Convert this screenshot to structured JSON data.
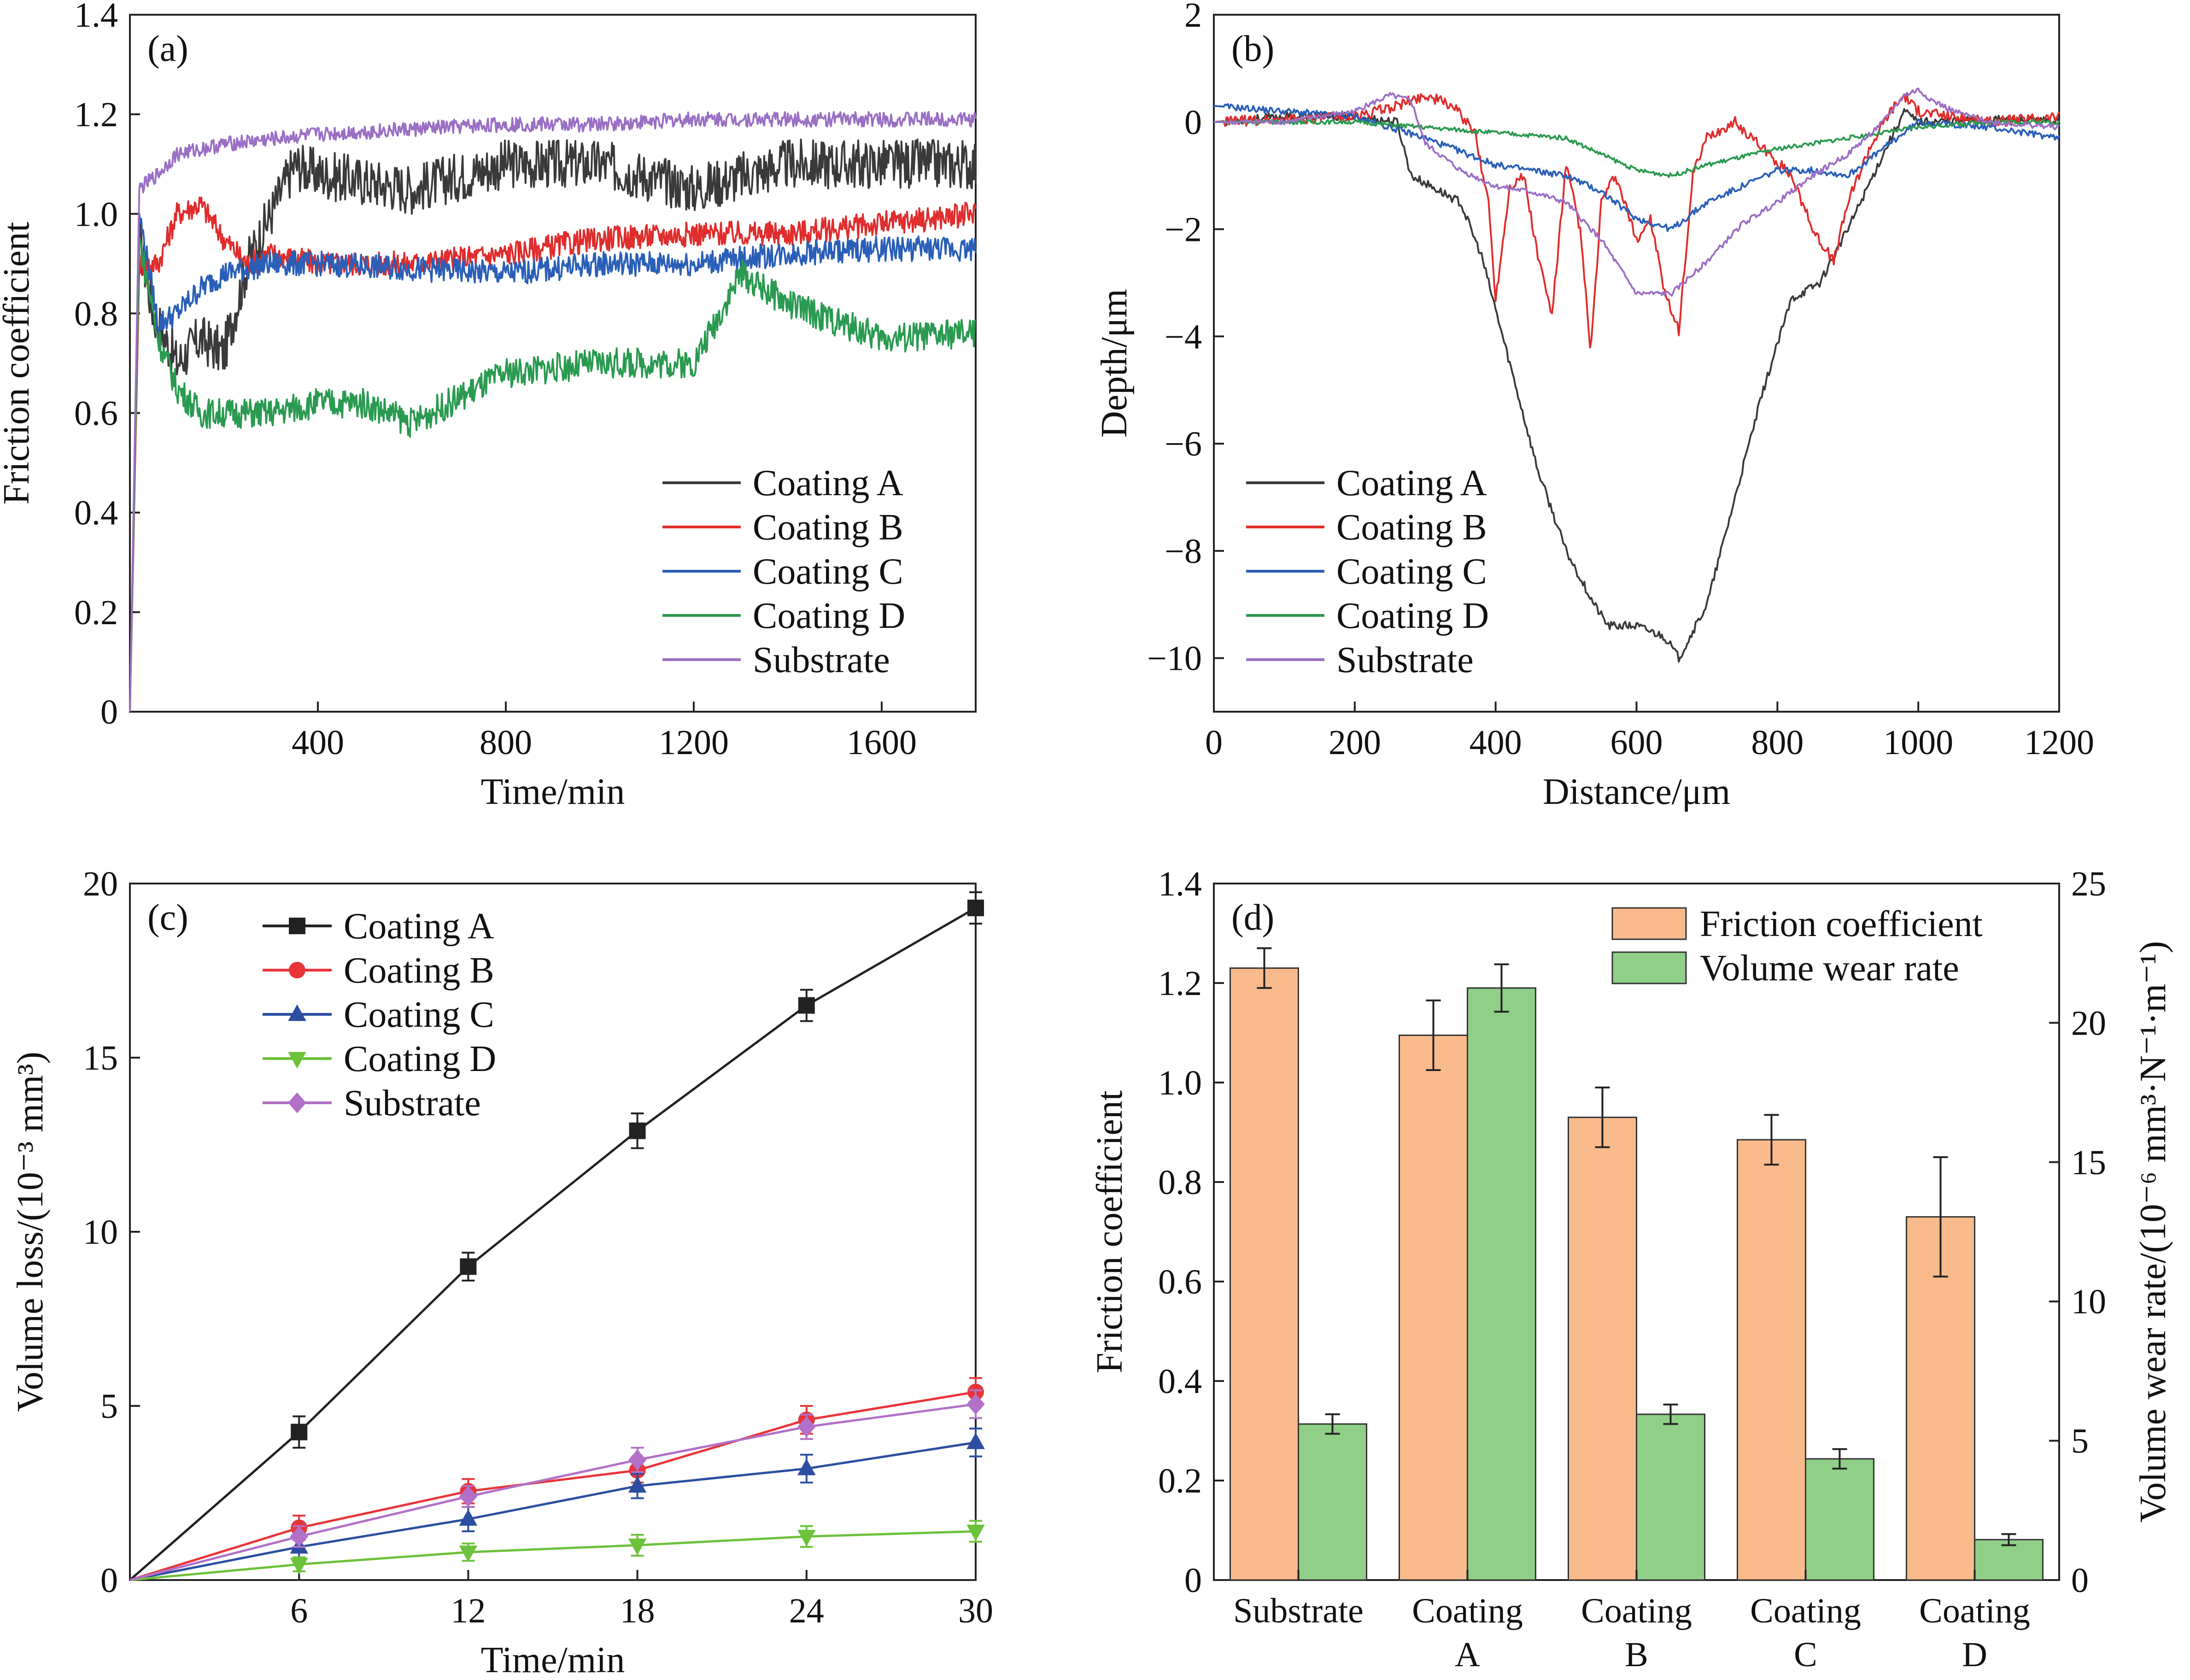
{
  "chart_data": [
    {
      "panel": "(a)",
      "type": "line",
      "xlabel": "Time/min",
      "ylabel": "Friction coefficient",
      "xlim": [
        0,
        1800
      ],
      "ylim": [
        0,
        1.4
      ],
      "xticks": [
        400,
        800,
        1200,
        1600
      ],
      "yticks": [
        0,
        0.2,
        0.4,
        0.6,
        0.8,
        1.0,
        1.2,
        1.4
      ],
      "ytick_labels": [
        "0",
        "0.2",
        "0.4",
        "0.6",
        "0.8",
        "1.0",
        "1.2",
        "1.4"
      ],
      "legend_position": "bottom-right",
      "series": [
        {
          "name": "Coating A",
          "color": "#3a3a3a",
          "x": [
            0,
            20,
            50,
            100,
            150,
            200,
            250,
            300,
            350,
            400,
            600,
            800,
            1000,
            1200,
            1400,
            1600,
            1800
          ],
          "y": [
            0.0,
            0.95,
            0.8,
            0.7,
            0.75,
            0.72,
            0.9,
            1.0,
            1.1,
            1.08,
            1.05,
            1.1,
            1.1,
            1.05,
            1.1,
            1.1,
            1.1
          ],
          "noise": 0.05
        },
        {
          "name": "Coating B",
          "color": "#e02d2d",
          "x": [
            0,
            20,
            60,
            100,
            150,
            200,
            250,
            300,
            400,
            600,
            800,
            1000,
            1200,
            1400,
            1600,
            1800
          ],
          "y": [
            0.0,
            0.9,
            0.9,
            1.0,
            1.02,
            0.95,
            0.9,
            0.92,
            0.9,
            0.9,
            0.92,
            0.95,
            0.96,
            0.96,
            0.98,
            1.0
          ],
          "noise": 0.025
        },
        {
          "name": "Coating C",
          "color": "#2a5fb8",
          "x": [
            0,
            20,
            60,
            100,
            150,
            200,
            300,
            400,
            600,
            800,
            1000,
            1200,
            1400,
            1600,
            1800
          ],
          "y": [
            0.0,
            1.0,
            0.78,
            0.8,
            0.85,
            0.88,
            0.9,
            0.9,
            0.89,
            0.88,
            0.9,
            0.9,
            0.92,
            0.93,
            0.93
          ],
          "noise": 0.025
        },
        {
          "name": "Coating D",
          "color": "#2a9a50",
          "x": [
            0,
            20,
            60,
            100,
            150,
            200,
            300,
            400,
            500,
            600,
            800,
            1000,
            1200,
            1300,
            1400,
            1600,
            1800
          ],
          "y": [
            0.0,
            0.95,
            0.75,
            0.65,
            0.6,
            0.6,
            0.6,
            0.62,
            0.62,
            0.58,
            0.68,
            0.7,
            0.7,
            0.88,
            0.82,
            0.75,
            0.76
          ],
          "noise": 0.03
        },
        {
          "name": "Substrate",
          "color": "#9b6fc4",
          "x": [
            0,
            20,
            60,
            100,
            200,
            400,
            600,
            800,
            1000,
            1200,
            1400,
            1600,
            1800
          ],
          "y": [
            0.0,
            1.05,
            1.08,
            1.12,
            1.14,
            1.16,
            1.17,
            1.18,
            1.18,
            1.19,
            1.19,
            1.19,
            1.19
          ],
          "noise": 0.015
        }
      ]
    },
    {
      "panel": "(b)",
      "type": "line",
      "xlabel": "Distance/μm",
      "ylabel": "Depth/μm",
      "xlim": [
        0,
        1200
      ],
      "ylim": [
        -11,
        2
      ],
      "xticks": [
        0,
        200,
        400,
        600,
        800,
        1000,
        1200
      ],
      "yticks": [
        -10,
        -8,
        -6,
        -4,
        -2,
        0,
        2
      ],
      "ytick_labels": [
        "−10",
        "−8",
        "−6",
        "−4",
        "−2",
        "0",
        "2"
      ],
      "legend_position": "bottom-left",
      "series": [
        {
          "name": "Coating A",
          "color": "#3a3a3a",
          "x": [
            0,
            100,
            200,
            260,
            280,
            350,
            380,
            420,
            460,
            500,
            540,
            560,
            600,
            640,
            660,
            700,
            740,
            780,
            820,
            860,
            900,
            950,
            980,
            1000,
            1100,
            1200
          ],
          "y": [
            0,
            0.1,
            0.1,
            0.0,
            -1.0,
            -1.5,
            -2.5,
            -4.5,
            -6.5,
            -8.0,
            -9.0,
            -9.4,
            -9.4,
            -9.6,
            -10.0,
            -9.0,
            -7.0,
            -5.0,
            -3.3,
            -3.0,
            -2.0,
            -0.6,
            0.2,
            0.0,
            0.05,
            0.0
          ],
          "noise": 0.08
        },
        {
          "name": "Coating B",
          "color": "#e02d2d",
          "x": [
            0,
            100,
            200,
            260,
            300,
            340,
            370,
            390,
            400,
            420,
            440,
            460,
            480,
            500,
            520,
            535,
            550,
            570,
            600,
            620,
            640,
            660,
            680,
            700,
            740,
            780,
            820,
            850,
            880,
            900,
            930,
            960,
            980,
            1000,
            1100,
            1200
          ],
          "y": [
            0,
            0.05,
            0.1,
            0.3,
            0.5,
            0.3,
            -0.2,
            -1.5,
            -3.3,
            -1.2,
            -1.0,
            -2.5,
            -3.6,
            -0.8,
            -2.0,
            -4.3,
            -1.5,
            -1.0,
            -2.2,
            -1.8,
            -3.2,
            -3.9,
            -1.0,
            -0.3,
            0.0,
            -0.5,
            -1.0,
            -2.0,
            -2.6,
            -1.5,
            -0.5,
            0.2,
            0.5,
            0.2,
            0.0,
            0.1
          ],
          "noise": 0.1
        },
        {
          "name": "Coating C",
          "color": "#2a5fb8",
          "x": [
            0,
            100,
            200,
            300,
            400,
            500,
            550,
            600,
            650,
            700,
            750,
            800,
            850,
            900,
            950,
            1000,
            1100,
            1200
          ],
          "y": [
            0.3,
            0.2,
            0.1,
            -0.3,
            -0.8,
            -1.0,
            -1.3,
            -1.8,
            -2.0,
            -1.5,
            -1.2,
            -0.9,
            -0.9,
            -1.0,
            -0.5,
            0.0,
            -0.1,
            -0.3
          ],
          "noise": 0.06
        },
        {
          "name": "Coating D",
          "color": "#2a9a50",
          "x": [
            0,
            100,
            200,
            300,
            400,
            500,
            550,
            600,
            650,
            700,
            800,
            900,
            1000,
            1100,
            1200
          ],
          "y": [
            0,
            0.0,
            0.0,
            -0.1,
            -0.2,
            -0.3,
            -0.6,
            -0.9,
            -1.0,
            -0.8,
            -0.5,
            -0.3,
            -0.1,
            0.0,
            0.0
          ],
          "noise": 0.04
        },
        {
          "name": "Substrate",
          "color": "#9b6fc4",
          "x": [
            0,
            100,
            200,
            250,
            280,
            300,
            350,
            400,
            450,
            500,
            550,
            600,
            650,
            700,
            750,
            800,
            850,
            900,
            950,
            980,
            1000,
            1020,
            1050,
            1100,
            1200
          ],
          "y": [
            0,
            0.0,
            0.2,
            0.5,
            0.4,
            -0.4,
            -0.9,
            -1.2,
            -1.3,
            -1.5,
            -2.2,
            -3.2,
            -3.2,
            -2.6,
            -1.9,
            -1.5,
            -1.0,
            -0.6,
            0.0,
            0.5,
            0.6,
            0.4,
            0.2,
            0.0,
            -0.1
          ],
          "noise": 0.05
        }
      ]
    },
    {
      "panel": "(c)",
      "type": "line",
      "xlabel": "Time/min",
      "ylabel": "Volume loss/(10⁻³ mm³)",
      "xlim": [
        0,
        30
      ],
      "ylim": [
        0,
        20
      ],
      "xticks": [
        6,
        12,
        18,
        24,
        30
      ],
      "yticks": [
        0,
        5,
        10,
        15,
        20
      ],
      "legend_position": "top-left",
      "series": [
        {
          "name": "Coating A",
          "color": "#222222",
          "marker": "square",
          "x": [
            0,
            6,
            12,
            18,
            24,
            30
          ],
          "y": [
            0,
            4.25,
            9.0,
            12.9,
            16.5,
            19.3
          ],
          "err": [
            0,
            0.45,
            0.4,
            0.5,
            0.45,
            0.45
          ]
        },
        {
          "name": "Coating B",
          "color": "#e8353a",
          "marker": "circle",
          "x": [
            0,
            6,
            12,
            18,
            24,
            30
          ],
          "y": [
            0,
            1.5,
            2.55,
            3.15,
            4.6,
            5.4
          ],
          "err": [
            0,
            0.35,
            0.35,
            0.35,
            0.4,
            0.4
          ]
        },
        {
          "name": "Coating C",
          "color": "#2b4ea0",
          "marker": "triangle-up",
          "x": [
            0,
            6,
            12,
            18,
            24,
            30
          ],
          "y": [
            0,
            0.95,
            1.75,
            2.7,
            3.2,
            3.95
          ],
          "err": [
            0,
            0.3,
            0.35,
            0.35,
            0.4,
            0.4
          ]
        },
        {
          "name": "Coating D",
          "color": "#6cc23a",
          "marker": "triangle-down",
          "x": [
            0,
            6,
            12,
            18,
            24,
            30
          ],
          "y": [
            0,
            0.45,
            0.8,
            1.0,
            1.25,
            1.4
          ],
          "err": [
            0,
            0.2,
            0.25,
            0.3,
            0.3,
            0.3
          ]
        },
        {
          "name": "Substrate",
          "color": "#b270c8",
          "marker": "diamond",
          "x": [
            0,
            6,
            12,
            18,
            24,
            30
          ],
          "y": [
            0,
            1.25,
            2.4,
            3.45,
            4.4,
            5.05
          ],
          "err": [
            0,
            0.3,
            0.3,
            0.35,
            0.35,
            0.4
          ]
        }
      ]
    },
    {
      "panel": "(d)",
      "type": "bar",
      "ylabel": "Friction coefficient",
      "y2label": "Volume wear rate/(10⁻⁶ mm³·N⁻¹·m⁻¹)",
      "categories": [
        [
          "Substrate"
        ],
        [
          "Coating",
          "A"
        ],
        [
          "Coating",
          "B"
        ],
        [
          "Coating",
          "C"
        ],
        [
          "Coating",
          "D"
        ]
      ],
      "ylim": [
        0,
        1.4
      ],
      "y2lim": [
        0,
        25
      ],
      "yticks": [
        0,
        0.2,
        0.4,
        0.6,
        0.8,
        1.0,
        1.2,
        1.4
      ],
      "ytick_labels": [
        "0",
        "0.2",
        "0.4",
        "0.6",
        "0.8",
        "1.0",
        "1.2",
        "1.4"
      ],
      "y2ticks": [
        0,
        5,
        10,
        15,
        20,
        25
      ],
      "legend_position": "top-right",
      "series": [
        {
          "name": "Friction coefficient",
          "axis": "left",
          "color": "#f9bb8c",
          "values": [
            1.23,
            1.095,
            0.93,
            0.885,
            0.73
          ],
          "err": [
            0.04,
            0.07,
            0.06,
            0.05,
            0.12
          ]
        },
        {
          "name": "Volume wear rate",
          "axis": "right",
          "color": "#8fcf87",
          "values": [
            5.6,
            21.25,
            5.95,
            4.35,
            1.45
          ],
          "err": [
            0.35,
            0.85,
            0.35,
            0.35,
            0.2
          ]
        }
      ]
    }
  ]
}
